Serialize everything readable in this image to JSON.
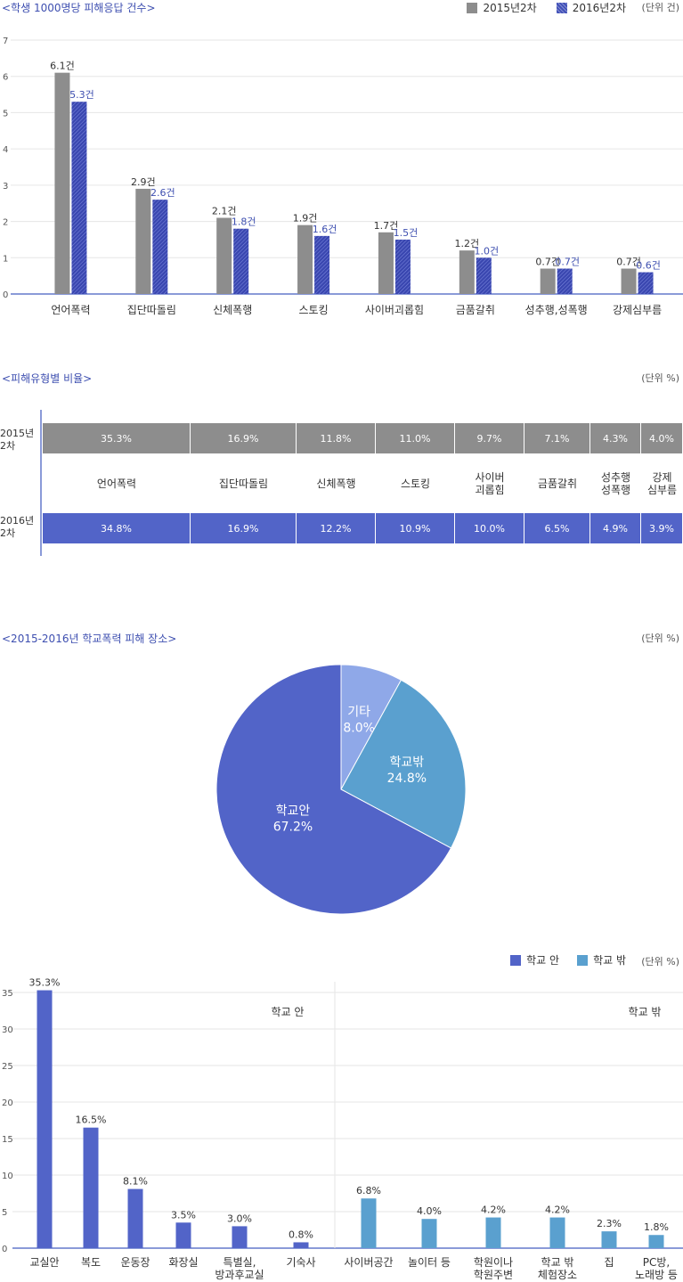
{
  "chart_data": [
    {
      "type": "bar",
      "title": "<학생 1000명당 피해응답 건수>",
      "unit": "(단위 건)",
      "categories": [
        "언어폭력",
        "집단따돌림",
        "신체폭행",
        "스토킹",
        "사이버괴롭힘",
        "금품갈취",
        "성추행,성폭행",
        "강제심부름"
      ],
      "series": [
        {
          "name": "2015년2차",
          "values": [
            6.1,
            2.9,
            2.1,
            1.9,
            1.7,
            1.2,
            0.7,
            0.7
          ],
          "labels": [
            "6.1건",
            "2.9건",
            "2.1건",
            "1.9건",
            "1.7건",
            "1.2건",
            "0.7건",
            "0.7건"
          ]
        },
        {
          "name": "2016년2차",
          "values": [
            5.3,
            2.6,
            1.8,
            1.6,
            1.5,
            1.0,
            0.7,
            0.6
          ],
          "labels": [
            "5.3건",
            "2.6건",
            "1.8건",
            "1.6건",
            "1.5건",
            "1.0건",
            "0.7건",
            "0.6건"
          ]
        }
      ],
      "ylim": [
        0,
        7
      ],
      "yticks": [
        "0",
        "1",
        "2",
        "3",
        "4",
        "5",
        "6",
        "7"
      ],
      "grid": true,
      "legend": "top-right"
    },
    {
      "type": "table",
      "title": "<피해유형별 비율>",
      "unit": "(단위 %)",
      "categories": [
        "언어폭력",
        "집단따돌림",
        "신체폭행",
        "스토킹",
        "사이버\n괴롭힘",
        "금품갈취",
        "성추행\n성폭행",
        "강제\n심부름"
      ],
      "rows": [
        {
          "name": "2015년\n2차",
          "values": [
            35.3,
            16.9,
            11.8,
            11.0,
            9.7,
            7.1,
            4.3,
            4.0
          ],
          "labels": [
            "35.3%",
            "16.9%",
            "11.8%",
            "11.0%",
            "9.7%",
            "7.1%",
            "4.3%",
            "4.0%"
          ]
        },
        {
          "name": "2016년\n2차",
          "values": [
            34.8,
            16.9,
            12.2,
            10.9,
            10.0,
            6.5,
            4.9,
            3.9
          ],
          "labels": [
            "34.8%",
            "16.9%",
            "12.2%",
            "10.9%",
            "10.0%",
            "6.5%",
            "4.9%",
            "3.9%"
          ]
        }
      ]
    },
    {
      "type": "pie",
      "title": "<2015-2016년 학교폭력 피해 장소>",
      "unit": "(단위 %)",
      "slices": [
        {
          "name": "기타",
          "value": 8.0,
          "label": "8.0%",
          "color": "#8fa8e8"
        },
        {
          "name": "학교밖",
          "value": 24.8,
          "label": "24.8%",
          "color": "#5aa0cf"
        },
        {
          "name": "학교안",
          "value": 67.2,
          "label": "67.2%",
          "color": "#5264c8"
        }
      ]
    },
    {
      "type": "bar",
      "unit": "(단위 %)",
      "categories": [
        "교실안",
        "복도",
        "운동장",
        "화장실",
        "특별실,\n방과후교실",
        "기숙사",
        "사이버공간",
        "놀이터 등",
        "학원이나\n학원주변",
        "학교 밖\n체험장소",
        "집",
        "PC방,\n노래방 등"
      ],
      "values": [
        35.3,
        16.5,
        8.1,
        3.5,
        3.0,
        0.8,
        6.8,
        4.0,
        4.2,
        4.2,
        2.3,
        1.8
      ],
      "labels": [
        "35.3%",
        "16.5%",
        "8.1%",
        "3.5%",
        "3.0%",
        "0.8%",
        "6.8%",
        "4.0%",
        "4.2%",
        "4.2%",
        "2.3%",
        "1.8%"
      ],
      "groups": [
        {
          "name": "학교 안",
          "count": 6,
          "color": "#5264c8"
        },
        {
          "name": "학교 밖",
          "count": 6,
          "color": "#5aa0cf"
        }
      ],
      "ylim": [
        0,
        35
      ],
      "yticks": [
        "0",
        "5",
        "10",
        "15",
        "20",
        "25",
        "30",
        "35"
      ],
      "grid": true,
      "legend": "top-right"
    }
  ]
}
